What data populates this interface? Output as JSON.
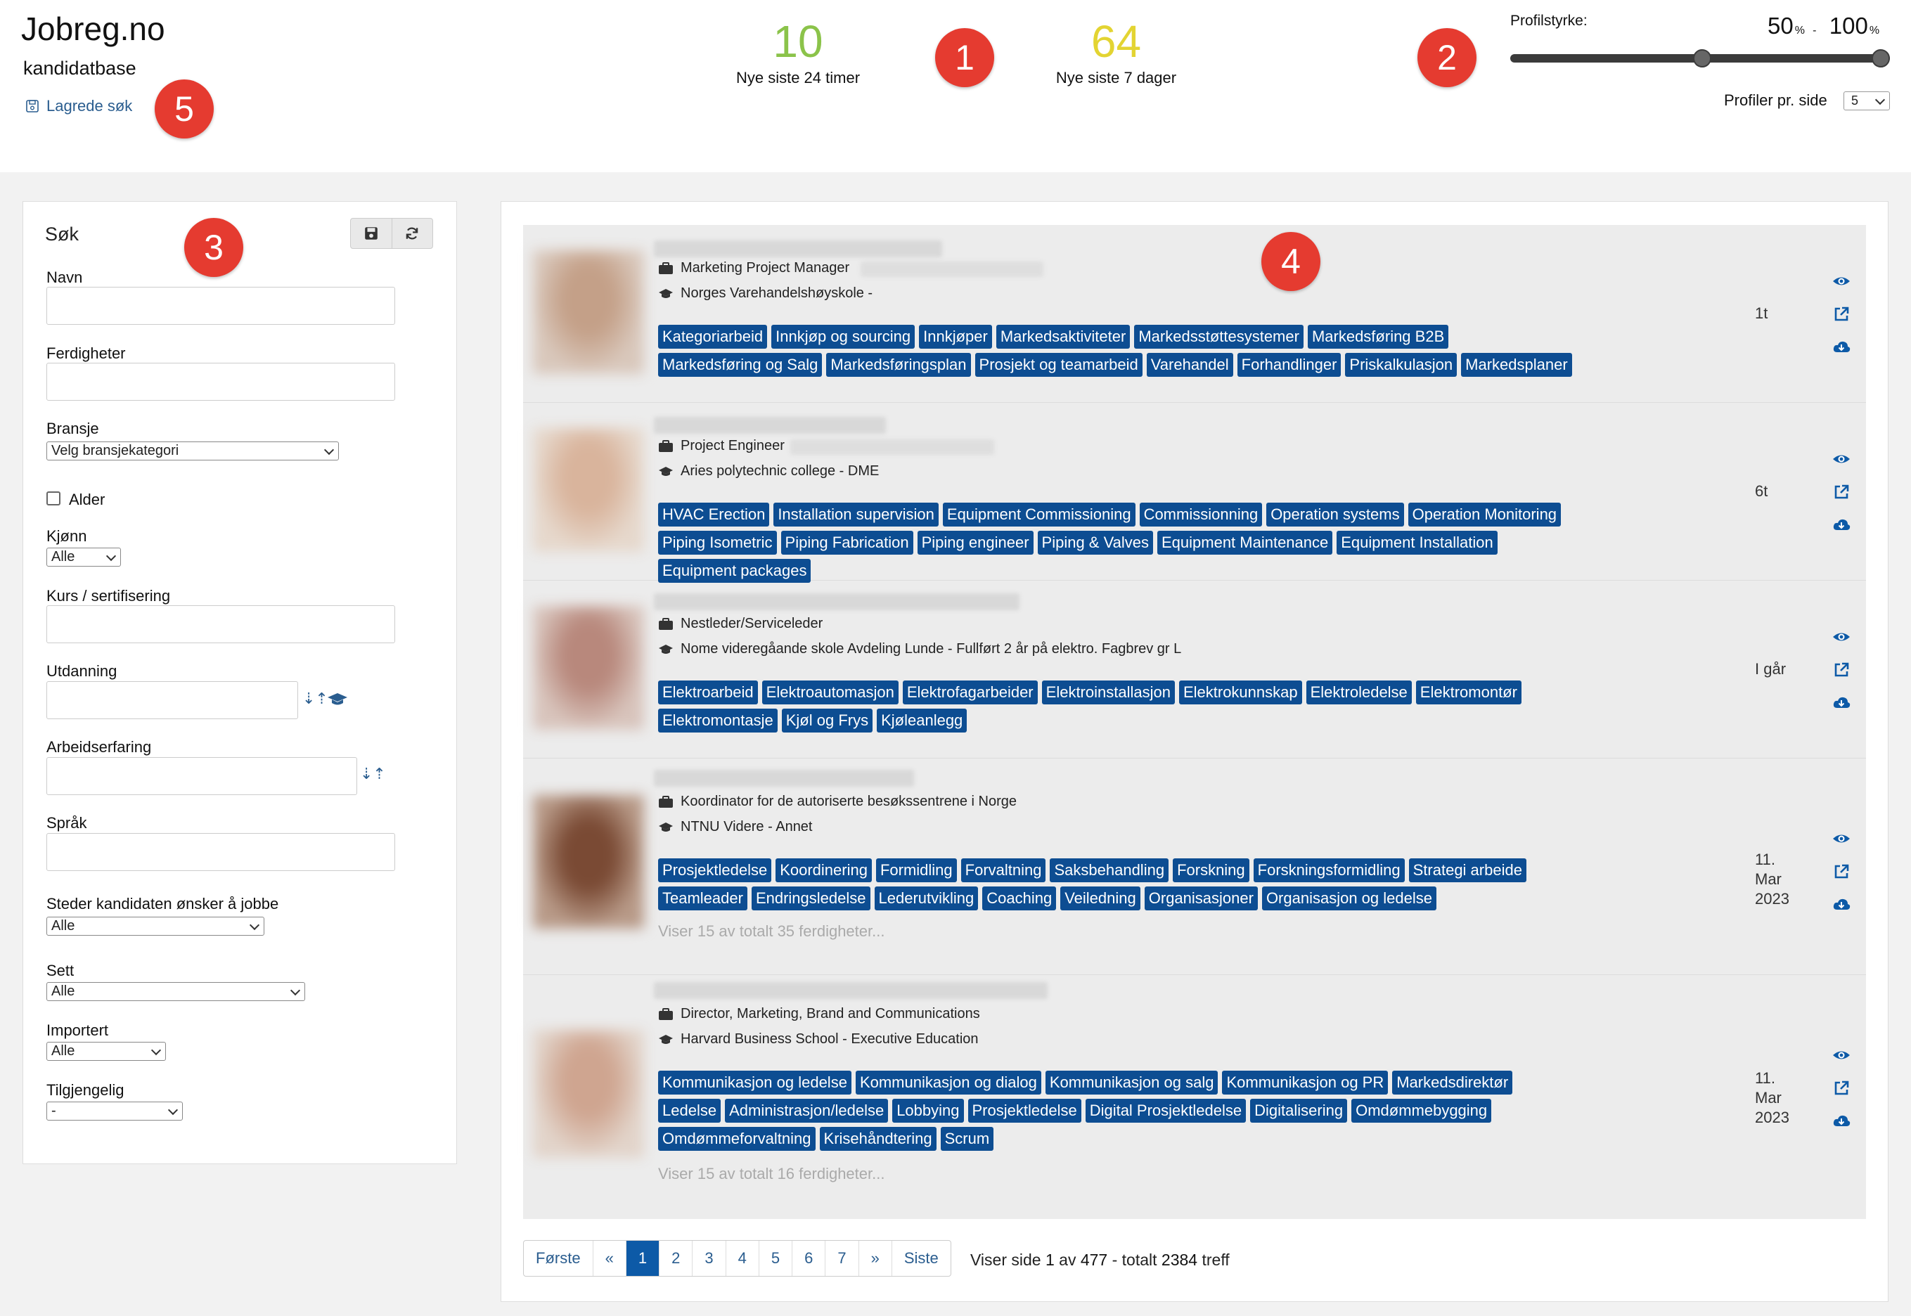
{
  "header": {
    "brand": "Jobreg.no",
    "subtitle": "kandidatbase",
    "saved_search": "Lagrede søk",
    "stats": [
      {
        "value": "10",
        "label": "Nye siste 24 timer",
        "color": "#8bc34a"
      },
      {
        "value": "64",
        "label": "Nye siste 7 dager",
        "color": "#e3d432"
      }
    ],
    "profile_strength": {
      "label": "Profilstyrke:",
      "min": "50",
      "max": "100",
      "unit": "%",
      "separator": "-"
    },
    "per_page": {
      "label": "Profiler pr. side",
      "value": "5"
    }
  },
  "markers": [
    "1",
    "2",
    "3",
    "4",
    "5"
  ],
  "search": {
    "title": "Søk",
    "fields": {
      "name": "Navn",
      "skills": "Ferdigheter",
      "industry": "Bransje",
      "industry_value": "Velg bransjekategori",
      "age": "Alder",
      "gender": "Kjønn",
      "gender_value": "Alle",
      "courses": "Kurs / sertifisering",
      "education": "Utdanning",
      "experience": "Arbeidserfaring",
      "language": "Språk",
      "locations": "Steder kandidaten ønsker å jobbe",
      "locations_value": "Alle",
      "seen": "Sett",
      "seen_value": "Alle",
      "imported": "Importert",
      "imported_value": "Alle",
      "available": "Tilgjengelig",
      "available_value": "-"
    }
  },
  "candidates": [
    {
      "job": "Marketing Project Manager",
      "edu": "Norges Varehandelshøyskole -",
      "date": "1t",
      "photo": "#c4a088",
      "tags": [
        "Kategoriarbeid",
        "Innkjøp og sourcing",
        "Innkjøper",
        "Markedsaktiviteter",
        "Markedsstøttesystemer",
        "Markedsføring B2B",
        "Markedsføring og Salg",
        "Markedsføringsplan",
        "Prosjekt og teamarbeid",
        "Varehandel",
        "Forhandlinger",
        "Priskalkulasjon",
        "Markedsplaner"
      ],
      "more": ""
    },
    {
      "job": "Project Engineer",
      "edu": "Aries polytechnic college - DME",
      "date": "6t",
      "photo": "#d9b49c",
      "tags": [
        "HVAC Erection",
        "Installation supervision",
        "Equipment Commissioning",
        "Commissionning",
        "Operation systems",
        "Operation Monitoring",
        "Piping Isometric",
        "Piping Fabrication",
        "Piping engineer",
        "Piping & Valves",
        "Equipment Maintenance",
        "Equipment Installation",
        "Equipment packages"
      ],
      "more": ""
    },
    {
      "job": "Nestleder/Serviceleder",
      "edu": "Nome videregåande skole Avdeling Lunde - Fullført 2 år på elektro. Fagbrev gr L",
      "date": "I går",
      "photo": "#b8887c",
      "tags": [
        "Elektroarbeid",
        "Elektroautomasjon",
        "Elektrofagarbeider",
        "Elektroinstallasjon",
        "Elektrokunnskap",
        "Elektroledelse",
        "Elektromontør",
        "Elektromontasje",
        "Kjøl og Frys",
        "Kjøleanlegg"
      ],
      "more": ""
    },
    {
      "job": "Koordinator for de autoriserte besøkssentrene i Norge",
      "edu": "NTNU Videre - Annet",
      "date": "11. Mar 2023",
      "photo": "#8a5a44",
      "tags": [
        "Prosjektledelse",
        "Koordinering",
        "Formidling",
        "Forvaltning",
        "Saksbehandling",
        "Forskning",
        "Forskningsformidling",
        "Strategi arbeide",
        "Teamleader",
        "Endringsledelse",
        "Lederutvikling",
        "Coaching",
        "Veiledning",
        "Organisasjoner",
        "Organisasjon og ledelse"
      ],
      "more": "Viser 15 av totalt 35 ferdigheter..."
    },
    {
      "job": "Director, Marketing, Brand and Communications",
      "edu": "Harvard Business School - Executive Education",
      "date": "11. Mar 2023",
      "photo": "#cfa590",
      "tags": [
        "Kommunikasjon og ledelse",
        "Kommunikasjon og dialog",
        "Kommunikasjon og salg",
        "Kommunikasjon og PR",
        "Markedsdirektør",
        "Ledelse",
        "Administrasjon/ledelse",
        "Lobbying",
        "Prosjektledelse",
        "Digital Prosjektledelse",
        "Digitalisering",
        "Omdømmebygging",
        "Omdømmeforvaltning",
        "Krisehåndtering",
        "Scrum"
      ],
      "more": "Viser 15 av totalt 16 ferdigheter..."
    }
  ],
  "pagination": {
    "items": [
      "Første",
      "«",
      "1",
      "2",
      "3",
      "4",
      "5",
      "6",
      "7",
      "»",
      "Siste"
    ],
    "active": "1",
    "info_prefix": "Viser side",
    "page": "1",
    "of": "av",
    "total_pages": "477",
    "total_prefix": "- totalt",
    "total": "2384",
    "suffix": "treff"
  },
  "colors": {
    "accent": "#0d4d92",
    "marker": "#e53b30"
  }
}
